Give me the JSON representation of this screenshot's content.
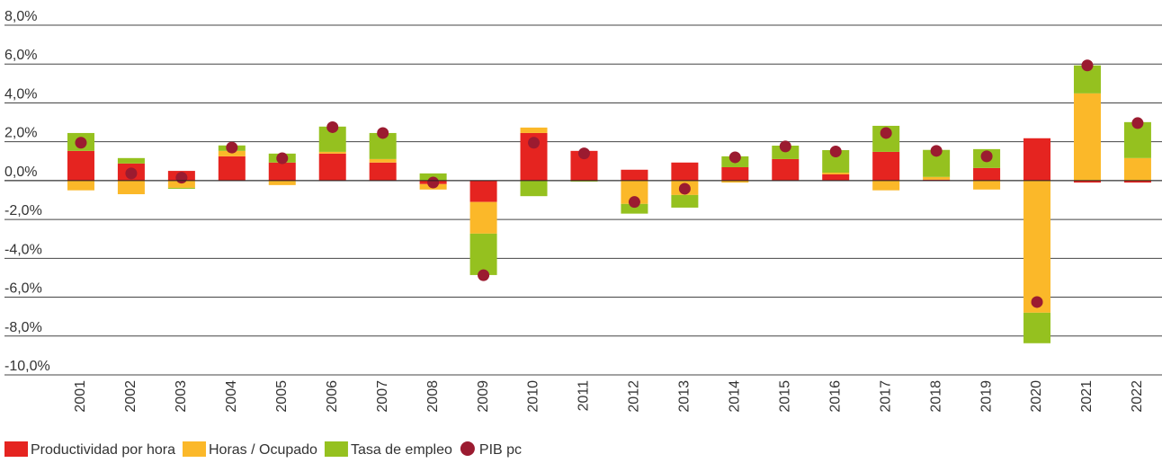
{
  "chart_data": {
    "type": "bar",
    "stacked": true,
    "categories": [
      "2001",
      "2002",
      "2003",
      "2004",
      "2005",
      "2006",
      "2007",
      "2008",
      "2009",
      "2010",
      "2011",
      "2012",
      "2013",
      "2014",
      "2015",
      "2016",
      "2017",
      "2018",
      "2019",
      "2020",
      "2021",
      "2022"
    ],
    "series": [
      {
        "name": "Productividad por hora",
        "color": "#e52420",
        "values": [
          1.53,
          0.88,
          0.5,
          1.25,
          0.93,
          1.39,
          0.93,
          -0.18,
          -1.1,
          2.45,
          1.53,
          0.56,
          0.93,
          0.69,
          1.11,
          0.32,
          1.48,
          0.05,
          0.65,
          2.18,
          -0.1,
          -0.1
        ]
      },
      {
        "name": "Horas / Ocupado",
        "color": "#fbb829",
        "values": [
          -0.5,
          -0.7,
          -0.37,
          0.28,
          -0.23,
          0.09,
          0.18,
          -0.28,
          -1.63,
          0.28,
          0,
          -1.2,
          -0.74,
          -0.1,
          0,
          0.09,
          -0.5,
          0.14,
          -0.46,
          -6.8,
          4.49,
          1.16
        ]
      },
      {
        "name": "Tasa de empleo",
        "color": "#95c11f",
        "values": [
          0.92,
          0.28,
          -0.05,
          0.28,
          0.46,
          1.3,
          1.34,
          0.37,
          -2.13,
          -0.8,
          -0.05,
          -0.5,
          -0.65,
          0.56,
          0.69,
          1.16,
          1.34,
          1.39,
          0.97,
          -1.57,
          1.44,
          1.85
        ]
      },
      {
        "name": "PIB pc",
        "color": "#9b1b30",
        "type": "scatter",
        "values": [
          1.95,
          0.37,
          0.15,
          1.7,
          1.15,
          2.75,
          2.45,
          -0.1,
          -4.87,
          1.95,
          1.4,
          -1.1,
          -0.42,
          1.2,
          1.76,
          1.5,
          2.45,
          1.53,
          1.25,
          -6.25,
          5.93,
          2.96
        ]
      }
    ],
    "ylim": [
      -10,
      8
    ],
    "yticks": [
      {
        "value": -10,
        "label": "-10,0%"
      },
      {
        "value": -8,
        "label": "-8,0%"
      },
      {
        "value": -6,
        "label": "-6,0%"
      },
      {
        "value": -4,
        "label": "-4,0%"
      },
      {
        "value": -2,
        "label": "-2,0%"
      },
      {
        "value": 0,
        "label": "0,0%"
      },
      {
        "value": 2,
        "label": "2,0%"
      },
      {
        "value": 4,
        "label": "4,0%"
      },
      {
        "value": 6,
        "label": "6,0%"
      },
      {
        "value": 8,
        "label": "8,0%"
      }
    ],
    "grid": true,
    "legend": "bottom-left"
  }
}
